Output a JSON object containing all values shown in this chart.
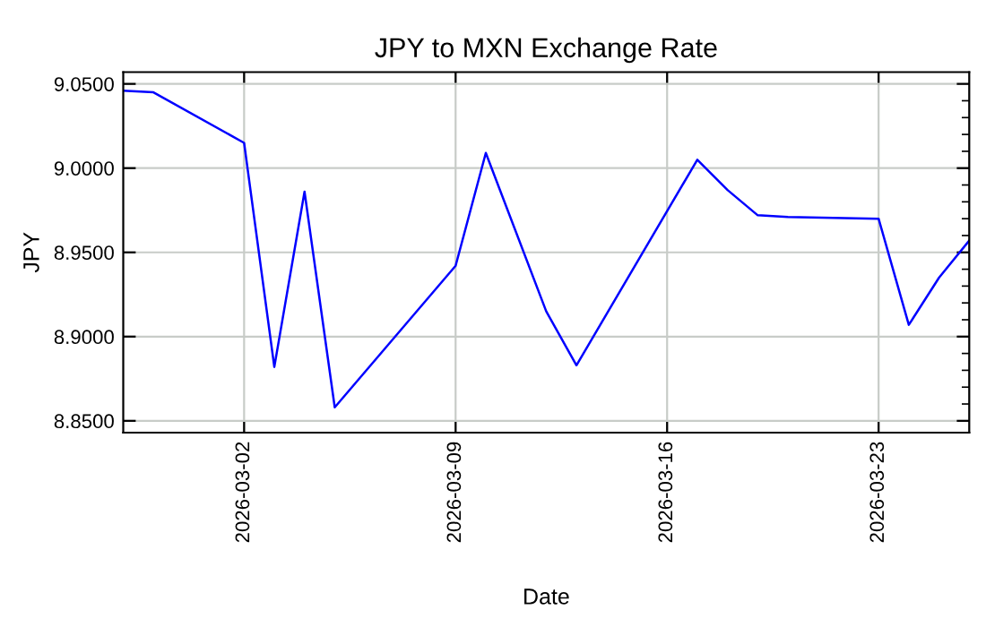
{
  "chart_data": {
    "type": "line",
    "title": "JPY to MXN Exchange Rate",
    "xlabel": "Date",
    "ylabel": "JPY",
    "x": [
      "2026-02-26",
      "2026-02-27",
      "2026-03-02",
      "2026-03-03",
      "2026-03-04",
      "2026-03-05",
      "2026-03-09",
      "2026-03-10",
      "2026-03-12",
      "2026-03-13",
      "2026-03-17",
      "2026-03-18",
      "2026-03-19",
      "2026-03-20",
      "2026-03-23",
      "2026-03-24",
      "2026-03-25",
      "2026-03-26"
    ],
    "series": [
      {
        "color": "#0000ff",
        "values": [
          9.046,
          9.045,
          9.015,
          8.882,
          8.986,
          8.858,
          8.942,
          9.009,
          8.915,
          8.883,
          9.005,
          8.987,
          8.972,
          8.971,
          8.97,
          8.907,
          8.935,
          8.957
        ]
      }
    ],
    "xlim": [
      "2026-02-26",
      "2026-03-26"
    ],
    "xticks": [
      "2026-03-02",
      "2026-03-09",
      "2026-03-16",
      "2026-03-23"
    ],
    "ylim": [
      8.843,
      9.057
    ],
    "yticks": [
      {
        "value": 8.85,
        "label": "8.8500"
      },
      {
        "value": 8.9,
        "label": "8.9000"
      },
      {
        "value": 8.95,
        "label": "8.9500"
      },
      {
        "value": 9.0,
        "label": "9.0000"
      },
      {
        "value": 9.05,
        "label": "9.0500"
      }
    ],
    "grid": true,
    "legend": false,
    "line_style": "solid",
    "marker": "none"
  }
}
